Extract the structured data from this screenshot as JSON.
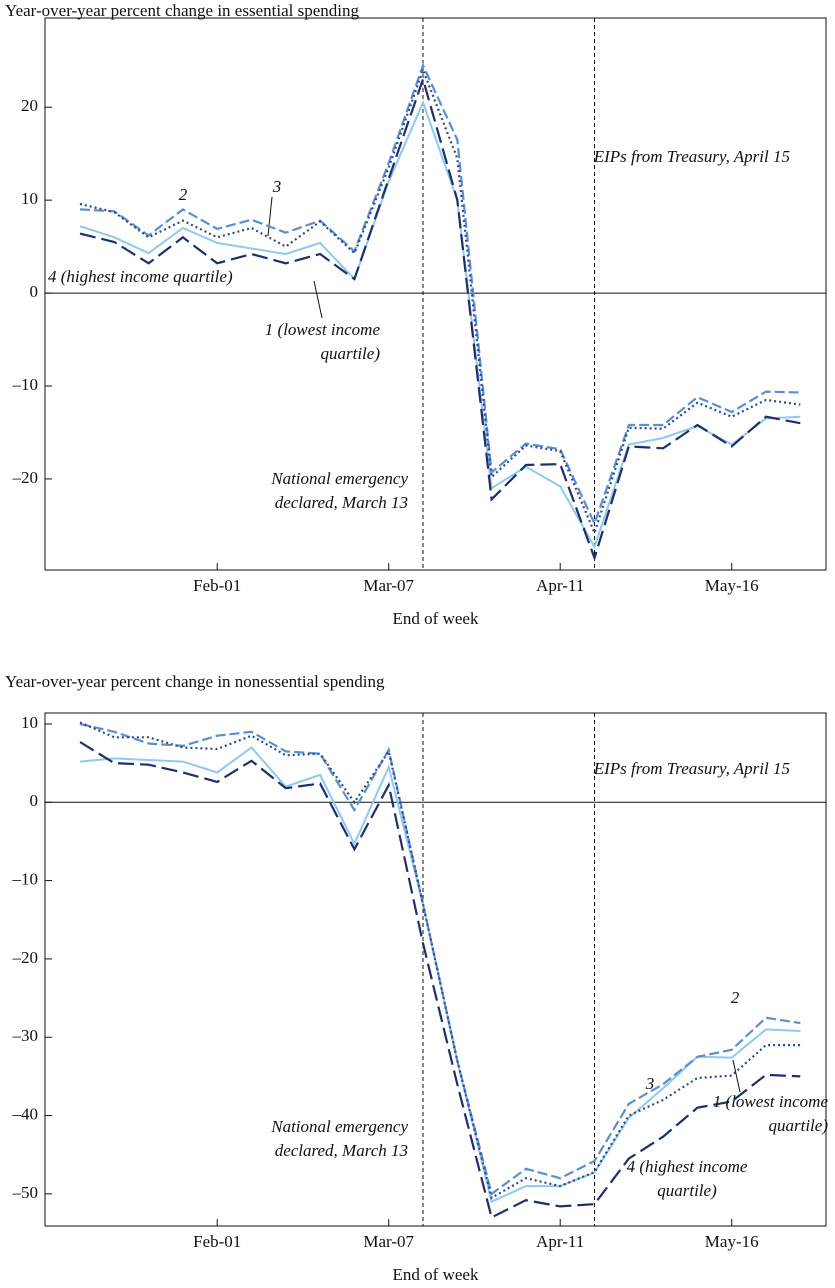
{
  "chart_data": [
    {
      "type": "line",
      "title": "Year-over-year percent change in essential spending",
      "x_label": "End of week",
      "categories": [
        null,
        null,
        null,
        null,
        "Feb-01",
        null,
        null,
        null,
        null,
        "Mar-07",
        null,
        null,
        null,
        null,
        "Apr-11",
        null,
        null,
        null,
        null,
        "May-16",
        null,
        null
      ],
      "ylim": [
        -29.8,
        29.6
      ],
      "yticks": [
        {
          "value": -20,
          "label": "–20"
        },
        {
          "value": -10,
          "label": "–10"
        },
        0,
        10,
        20
      ],
      "annotations": [
        "EIPs from Treasury, April 15",
        "National emergency declared, March 13"
      ],
      "series": [
        {
          "name": "1 (lowest income quartile)",
          "color": "#8ec9ef",
          "style": "solid",
          "values": [
            7.2,
            6.0,
            4.3,
            7.0,
            5.4,
            4.8,
            4.2,
            5.4,
            1.5,
            12.0,
            20.5,
            10.0,
            -21.0,
            -18.7,
            -20.8,
            -27.3,
            -16.3,
            -15.6,
            -14.3,
            -16.3,
            -13.5,
            -13.3
          ]
        },
        {
          "name": "2",
          "color": "#5b8fd0",
          "style": "dashed",
          "values": [
            9.0,
            8.8,
            6.2,
            9.0,
            6.9,
            7.9,
            6.5,
            7.8,
            4.5,
            14.0,
            24.5,
            16.5,
            -19.3,
            -16.2,
            -16.8,
            -24.8,
            -14.2,
            -14.2,
            -11.2,
            -12.8,
            -10.6,
            -10.7
          ]
        },
        {
          "name": "3",
          "color": "#2e4a8c",
          "style": "dotted",
          "values": [
            9.6,
            8.7,
            6.0,
            7.8,
            6.0,
            7.0,
            5.0,
            7.7,
            4.3,
            13.5,
            24.0,
            14.5,
            -19.8,
            -16.4,
            -17.0,
            -25.8,
            -14.5,
            -14.6,
            -11.8,
            -13.3,
            -11.5,
            -12.0
          ]
        },
        {
          "name": "4 (highest income quartile)",
          "color": "#1f2f6b",
          "style": "longdash",
          "values": [
            6.4,
            5.5,
            3.2,
            6.0,
            3.2,
            4.2,
            3.2,
            4.2,
            1.5,
            12.3,
            23.0,
            10.0,
            -22.2,
            -18.5,
            -18.4,
            -28.5,
            -16.5,
            -16.7,
            -14.2,
            -16.5,
            -13.3,
            -14.0
          ]
        }
      ]
    },
    {
      "type": "line",
      "title": "Year-over-year percent change in nonessential spending",
      "x_label": "End of week",
      "categories": [
        null,
        null,
        null,
        null,
        "Feb-01",
        null,
        null,
        null,
        null,
        "Mar-07",
        null,
        null,
        null,
        null,
        "Apr-11",
        null,
        null,
        null,
        null,
        "May-16",
        null,
        null
      ],
      "ylim": [
        -54.1,
        11.4
      ],
      "yticks": [
        {
          "value": -50,
          "label": "–50"
        },
        {
          "value": -40,
          "label": "–40"
        },
        {
          "value": -30,
          "label": "–30"
        },
        {
          "value": -20,
          "label": "–20"
        },
        {
          "value": -10,
          "label": "–10"
        },
        0,
        10
      ],
      "annotations": [
        "EIPs from Treasury, April 15",
        "National emergency declared, March 13"
      ],
      "series": [
        {
          "name": "1 (lowest income quartile)",
          "color": "#8ec9ef",
          "style": "solid",
          "values": [
            5.2,
            5.6,
            5.4,
            5.2,
            3.8,
            7.0,
            2.0,
            3.5,
            -5.3,
            4.5,
            -13.0,
            -33.0,
            -51.0,
            -49.0,
            -49.0,
            -47.3,
            -40.3,
            -36.5,
            -32.5,
            -32.6,
            -29.0,
            -29.2
          ]
        },
        {
          "name": "2",
          "color": "#5b8fd0",
          "style": "dashed",
          "values": [
            10.0,
            9.0,
            7.5,
            7.2,
            8.5,
            9.0,
            6.5,
            6.2,
            -1.0,
            6.7,
            -13.0,
            -33.0,
            -50.0,
            -46.8,
            -48.0,
            -45.8,
            -38.5,
            -36.0,
            -32.5,
            -31.6,
            -27.5,
            -28.2
          ]
        },
        {
          "name": "3",
          "color": "#2e4a8c",
          "style": "dotted",
          "values": [
            10.2,
            8.3,
            8.3,
            7.0,
            6.8,
            8.5,
            6.0,
            6.2,
            0.0,
            6.5,
            -13.0,
            -33.0,
            -50.5,
            -48.0,
            -49.0,
            -47.2,
            -40.0,
            -38.0,
            -35.2,
            -34.9,
            -31.0,
            -31.0
          ]
        },
        {
          "name": "4 (highest income quartile)",
          "color": "#1f2f6b",
          "style": "longdash",
          "values": [
            7.7,
            5.0,
            4.8,
            3.8,
            2.6,
            5.3,
            1.8,
            2.4,
            -6.0,
            2.2,
            -18.0,
            -36.0,
            -53.0,
            -50.8,
            -51.6,
            -51.3,
            -45.5,
            -42.7,
            -39.0,
            -38.2,
            -34.8,
            -35.0
          ]
        }
      ]
    }
  ]
}
